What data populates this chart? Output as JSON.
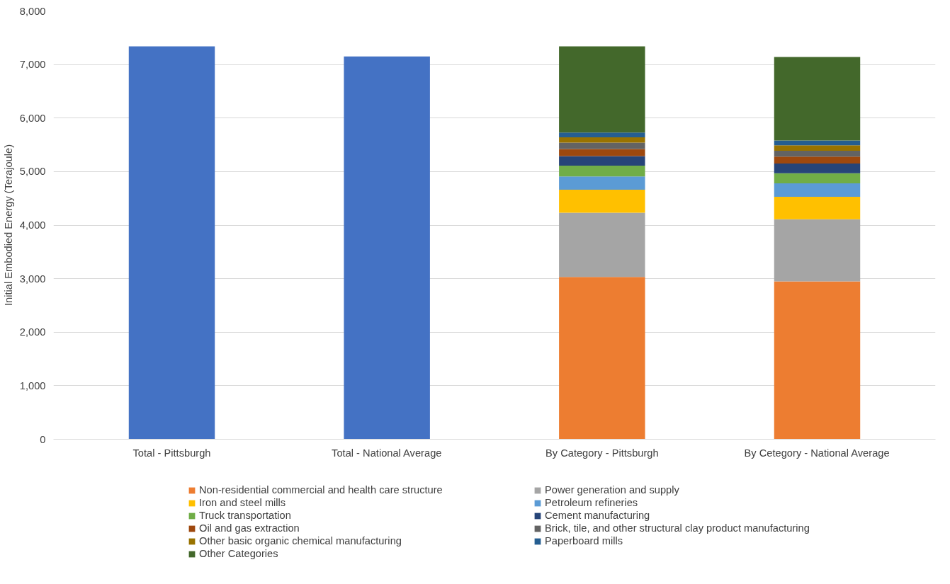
{
  "chart_data": {
    "type": "bar",
    "stacked": true,
    "ylabel": "Initial Embodied Energy (Terajoule)",
    "categories": [
      "Total - Pittsburgh",
      "Total - National Average",
      "By Category - Pittsburgh",
      "By Cetegory - National Average"
    ],
    "ylim": [
      0,
      8000
    ],
    "yticks": [
      {
        "value": 0,
        "label": "0"
      },
      {
        "value": 1000,
        "label": "1,000"
      },
      {
        "value": 2000,
        "label": "2,000"
      },
      {
        "value": 3000,
        "label": "3,000"
      },
      {
        "value": 4000,
        "label": "4,000"
      },
      {
        "value": 5000,
        "label": "5,000"
      },
      {
        "value": 6000,
        "label": "6,000"
      },
      {
        "value": 7000,
        "label": "7,000"
      },
      {
        "value": 8000,
        "label": "8,000"
      }
    ],
    "grid": "y",
    "legend": "bottom",
    "series": [
      {
        "color": "#4472c4",
        "values": [
          7340,
          7150,
          null,
          null
        ]
      },
      {
        "name": "Non-residential commercial and health care structure",
        "color": "#ed7d31",
        "values": [
          null,
          null,
          3030,
          2950
        ]
      },
      {
        "name": "Power generation and supply",
        "color": "#a5a5a5",
        "values": [
          null,
          null,
          1200,
          1160
        ]
      },
      {
        "name": "Iron and steel mills",
        "color": "#ffc000",
        "values": [
          null,
          null,
          430,
          420
        ]
      },
      {
        "name": "Petroleum refineries",
        "color": "#5b9bd5",
        "values": [
          null,
          null,
          250,
          250
        ]
      },
      {
        "name": "Truck transportation",
        "color": "#70ad47",
        "values": [
          null,
          null,
          200,
          190
        ]
      },
      {
        "name": "Cement manufacturing",
        "color": "#264478",
        "values": [
          null,
          null,
          180,
          180
        ]
      },
      {
        "name": "Oil and gas extraction",
        "color": "#9e480e",
        "values": [
          null,
          null,
          130,
          130
        ]
      },
      {
        "name": "Brick, tile, and other structural clay product manufacturing",
        "color": "#636363",
        "values": [
          null,
          null,
          120,
          110
        ]
      },
      {
        "name": "Other basic organic chemical manufacturing",
        "color": "#997300",
        "values": [
          null,
          null,
          100,
          100
        ]
      },
      {
        "name": "Paperboard mills",
        "color": "#255e91",
        "values": [
          null,
          null,
          90,
          90
        ]
      },
      {
        "name": "Other Categories",
        "color": "#43682b",
        "values": [
          null,
          null,
          1610,
          1560
        ]
      }
    ]
  }
}
